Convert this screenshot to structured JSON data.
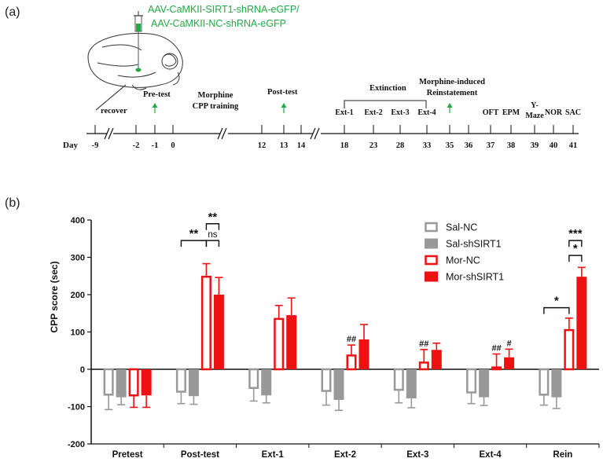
{
  "panel_a": {
    "label": "(a)",
    "virus_line1": "AAV-CaMKII-SIRT1-shRNA-eGFP/",
    "virus_line2": "AAV-CaMKII-NC-shRNA-eGFP",
    "accent": "#22aa44",
    "phases": {
      "recover": "recover",
      "pre_test": "Pre-test",
      "training_line1": "Morphine",
      "training_line2": "CPP training",
      "post_test": "Post-test",
      "extinction": "Extinction",
      "reinstatement_line1": "Morphine-induced",
      "reinstatement_line2": "Reinstatement"
    },
    "ext_labels": [
      "Ext-1",
      "Ext-2",
      "Ext-3",
      "Ext-4"
    ],
    "test_labels": [
      "OFT",
      "EPM",
      "Y-",
      "Maze",
      "NOR",
      "SAC"
    ],
    "day_label": "Day",
    "days": [
      "-9",
      "-2",
      "-1",
      "0",
      "12",
      "13",
      "14",
      "18",
      "23",
      "28",
      "33",
      "35",
      "36",
      "37",
      "38",
      "39",
      "40",
      "41"
    ]
  },
  "chart_data": {
    "panel_label": "(b)",
    "type": "bar",
    "ylabel": "CPP score (sec)",
    "ylim": [
      -200,
      400
    ],
    "yticks": [
      "-200",
      "-100",
      "0",
      "100",
      "200",
      "300",
      "400"
    ],
    "categories": [
      "Pretest",
      "Post-test",
      "Ext-1",
      "Ext-2",
      "Ext-3",
      "Ext-4",
      "Rein"
    ],
    "series": [
      {
        "name": "Sal-NC",
        "style": "hollow",
        "color": "#999999",
        "values": [
          -68,
          -60,
          -50,
          -58,
          -55,
          -62,
          -68
        ],
        "errors": [
          40,
          32,
          35,
          38,
          35,
          30,
          28
        ]
      },
      {
        "name": "Sal-shSIRT1",
        "style": "filled",
        "color": "#999999",
        "values": [
          -75,
          -72,
          -70,
          -82,
          -78,
          -75,
          -75
        ],
        "errors": [
          20,
          22,
          20,
          28,
          25,
          22,
          30
        ]
      },
      {
        "name": "Mor-NC",
        "style": "hollow",
        "color": "#ee1111",
        "values": [
          -70,
          248,
          135,
          37,
          18,
          5,
          105
        ],
        "errors": [
          32,
          35,
          36,
          28,
          35,
          36,
          32
        ]
      },
      {
        "name": "Mor-shSIRT1",
        "style": "filled",
        "color": "#ee1111",
        "values": [
          -70,
          200,
          145,
          80,
          52,
          32,
          248
        ],
        "errors": [
          32,
          46,
          46,
          40,
          18,
          22,
          25
        ]
      }
    ],
    "hash_annotations": [
      {
        "category": 3,
        "series": 2,
        "text": "##"
      },
      {
        "category": 4,
        "series": 2,
        "text": "##"
      },
      {
        "category": 5,
        "series": 2,
        "text": "##"
      },
      {
        "category": 5,
        "series": 3,
        "text": "#"
      }
    ],
    "significance": [
      {
        "category": 1,
        "from": 0,
        "to": 2,
        "y": 345,
        "text": "**"
      },
      {
        "category": 1,
        "from": 2,
        "to": 3,
        "y": 390,
        "text": "**"
      },
      {
        "category": 1,
        "from": 2,
        "to": 3,
        "y": 345,
        "text": "ns"
      },
      {
        "category": 6,
        "from": 0,
        "to": 2,
        "y": 165,
        "text": "*"
      },
      {
        "category": 6,
        "from": 2,
        "to": 3,
        "y": 345,
        "text": "***"
      },
      {
        "category": 6,
        "from": 2,
        "to": 3,
        "y": 305,
        "text": "*"
      }
    ],
    "legend": {
      "position": "top-right"
    }
  }
}
